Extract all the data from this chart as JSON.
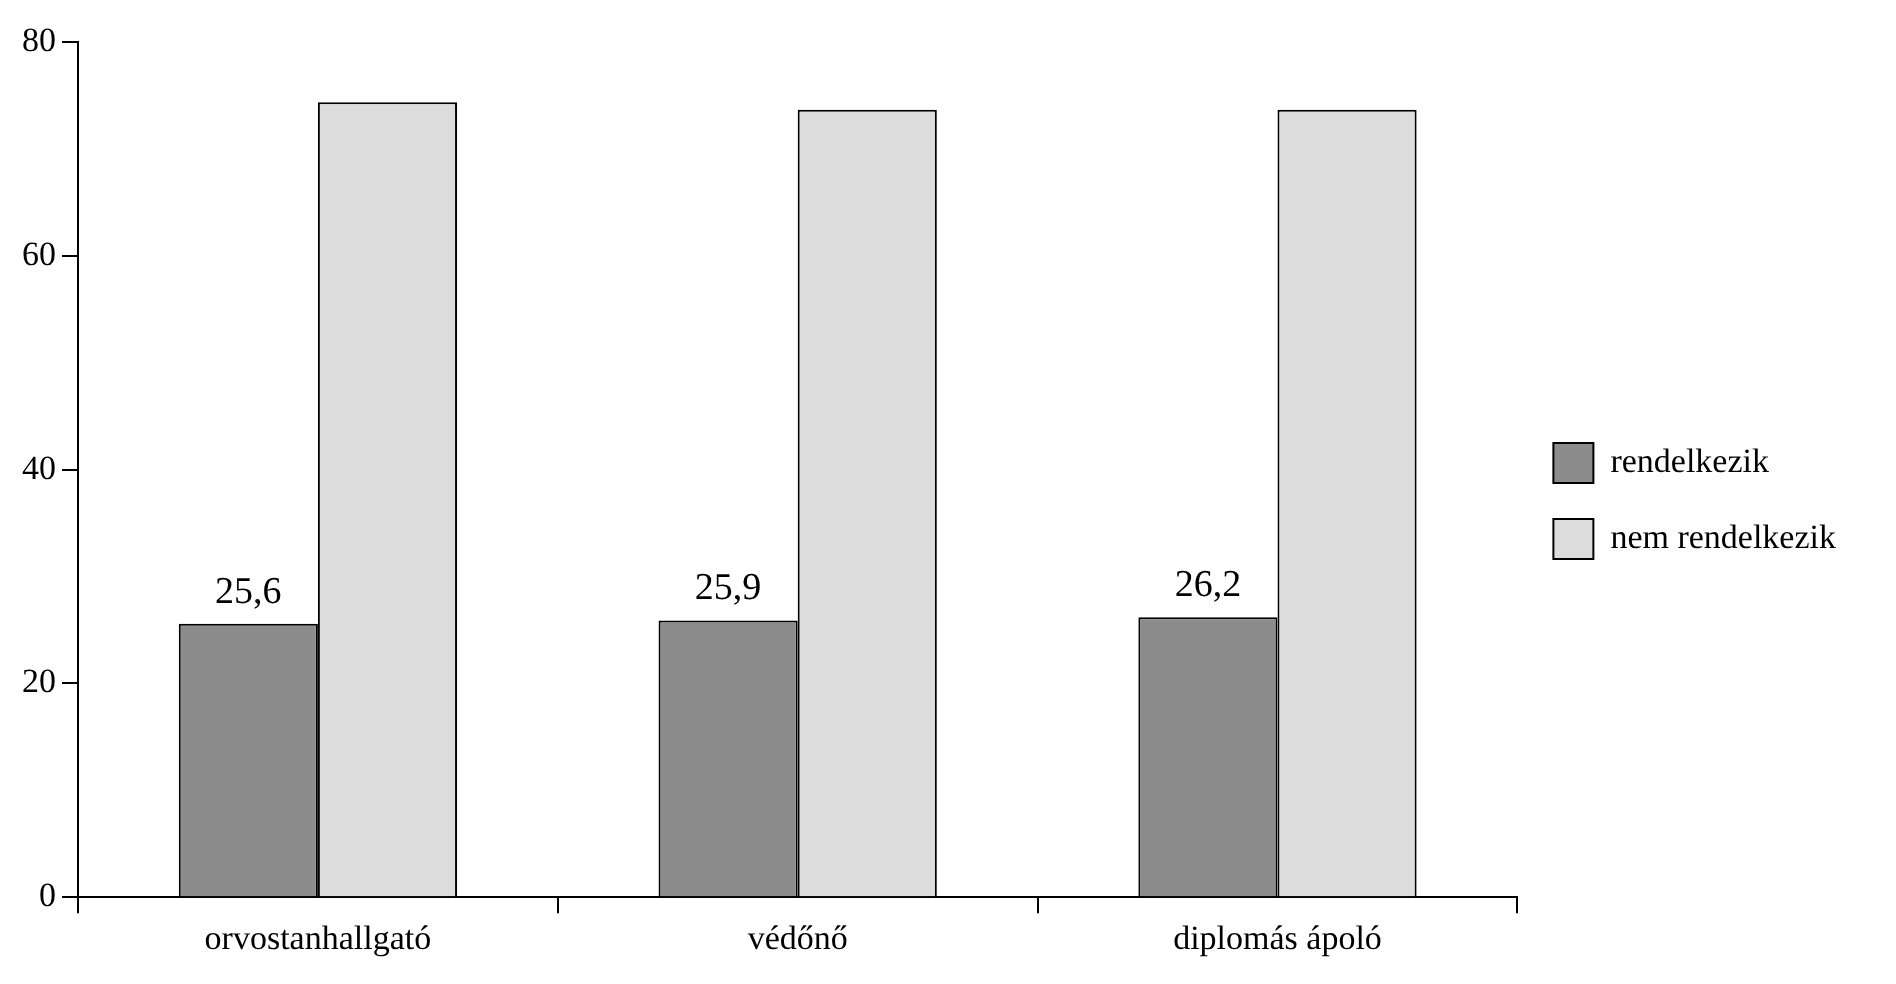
{
  "chart_data": {
    "type": "bar",
    "categories": [
      "orvostanhallgató",
      "védőnő",
      "diplomás ápoló"
    ],
    "series": [
      {
        "name": "rendelkezik",
        "color": "#8c8c8c",
        "values": [
          25.6,
          25.9,
          26.2
        ],
        "value_labels": [
          "25,6",
          "25,9",
          "26,2"
        ]
      },
      {
        "name": "nem rendelkezik",
        "color": "#dcdcdc",
        "values": [
          74.4,
          73.7,
          73.7
        ]
      }
    ],
    "ylim": [
      0,
      80
    ],
    "yticks": [
      0,
      20,
      40,
      60,
      80
    ],
    "grid": false,
    "legend": "right"
  }
}
